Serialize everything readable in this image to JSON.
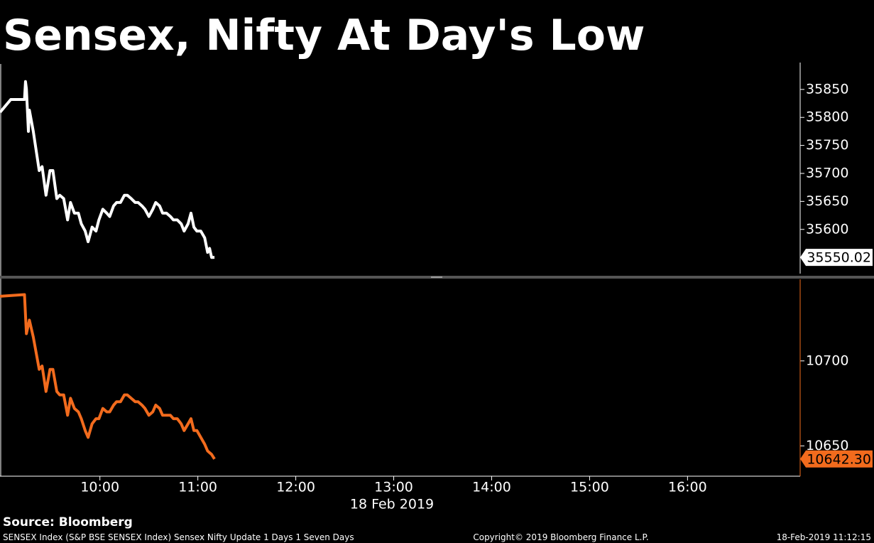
{
  "title": "Sensex, Nifty At Day's Low",
  "source": "Source: Bloomberg",
  "footer_left": "SENSEX Index (S&P BSE SENSEX Index) Sensex Nifty Update 1 Days 1 Seven Days",
  "copyright": "Copyright© 2019 Bloomberg Finance L.P.",
  "timestamp": "18-Feb-2019 11:12:15",
  "chart_data": [
    {
      "type": "line",
      "x": [
        8.98,
        9.09,
        9.23,
        9.24,
        9.25,
        9.27,
        9.28,
        9.32,
        9.38,
        9.41,
        9.45,
        9.49,
        9.52,
        9.56,
        9.59,
        9.63,
        9.67,
        9.7,
        9.74,
        9.78,
        9.81,
        9.85,
        9.88,
        9.92,
        9.96,
        9.99,
        10.03,
        10.07,
        10.1,
        10.14,
        10.17,
        10.21,
        10.25,
        10.28,
        10.32,
        10.36,
        10.39,
        10.43,
        10.46,
        10.5,
        10.54,
        10.57,
        10.61,
        10.64,
        10.68,
        10.72,
        10.75,
        10.79,
        10.83,
        10.86,
        10.9,
        10.93,
        10.96,
        10.99,
        11.03,
        11.07,
        11.1,
        11.12,
        11.14,
        11.17
      ],
      "series": [
        {
          "color": "#ffffff",
          "values": [
            35809,
            35832,
            35832,
            35864,
            35851,
            35775,
            35813,
            35775,
            35705,
            35712,
            35661,
            35705,
            35705,
            35655,
            35661,
            35655,
            35617,
            35648,
            35629,
            35629,
            35610,
            35597,
            35578,
            35604,
            35597,
            35617,
            35636,
            35629,
            35623,
            35642,
            35648,
            35648,
            35661,
            35661,
            35655,
            35648,
            35648,
            35642,
            35636,
            35623,
            35636,
            35648,
            35642,
            35629,
            35629,
            35623,
            35617,
            35617,
            35610,
            35597,
            35610,
            35629,
            35604,
            35597,
            35597,
            35585,
            35559,
            35566,
            35550,
            35550.02
          ]
        }
      ],
      "xlim": [
        8.98,
        17.15
      ],
      "ylim": [
        35521,
        35898
      ],
      "yticks": [
        35600,
        35650,
        35700,
        35750,
        35800,
        35850
      ]
    },
    {
      "type": "line",
      "x": [
        8.98,
        9.23,
        9.25,
        9.28,
        9.32,
        9.38,
        9.41,
        9.45,
        9.49,
        9.52,
        9.56,
        9.59,
        9.63,
        9.67,
        9.7,
        9.74,
        9.78,
        9.81,
        9.85,
        9.88,
        9.92,
        9.96,
        9.99,
        10.03,
        10.07,
        10.1,
        10.14,
        10.17,
        10.21,
        10.25,
        10.28,
        10.32,
        10.36,
        10.39,
        10.43,
        10.46,
        10.5,
        10.54,
        10.57,
        10.61,
        10.64,
        10.68,
        10.72,
        10.75,
        10.79,
        10.83,
        10.86,
        10.9,
        10.93,
        10.96,
        10.99,
        11.03,
        11.07,
        11.1,
        11.14,
        11.17
      ],
      "series": [
        {
          "color": "#f26b1d",
          "values": [
            10738,
            10739,
            10716,
            10724,
            10714,
            10695,
            10697,
            10682,
            10695,
            10695,
            10682,
            10680,
            10680,
            10668,
            10678,
            10672,
            10670,
            10666,
            10659,
            10655,
            10663,
            10666,
            10666,
            10672,
            10670,
            10670,
            10674,
            10676,
            10676,
            10680,
            10680,
            10678,
            10676,
            10676,
            10674,
            10672,
            10668,
            10670,
            10674,
            10672,
            10668,
            10668,
            10668,
            10666,
            10666,
            10663,
            10659,
            10663,
            10666,
            10659,
            10659,
            10655,
            10651,
            10647,
            10645,
            10642.3
          ],
          "value_labels": [
            null,
            null,
            null,
            null,
            null,
            null,
            null,
            null,
            null,
            null,
            null,
            null,
            null,
            null,
            null,
            null,
            null,
            null,
            null,
            null,
            null,
            null,
            null,
            null,
            null,
            null,
            null,
            null,
            null,
            null,
            null,
            null,
            null,
            null,
            null,
            null,
            null,
            null,
            null,
            null,
            null,
            null,
            null,
            null,
            null,
            null,
            null,
            null,
            null,
            null,
            null,
            null,
            null,
            null,
            null,
            "10642.30"
          ]
        }
      ],
      "xlim": [
        8.98,
        17.15
      ],
      "ylim": [
        10633,
        10748
      ],
      "yticks": [
        10650,
        10700
      ],
      "xticks": [
        {
          "value": 10,
          "label": "10:00"
        },
        {
          "value": 11,
          "label": "11:00"
        },
        {
          "value": 12,
          "label": "12:00"
        },
        {
          "value": 13,
          "label": "13:00"
        },
        {
          "value": 14,
          "label": "14:00"
        },
        {
          "value": 15,
          "label": "15:00"
        },
        {
          "value": 16,
          "label": "16:00"
        }
      ],
      "xlabel": "18 Feb 2019"
    }
  ]
}
